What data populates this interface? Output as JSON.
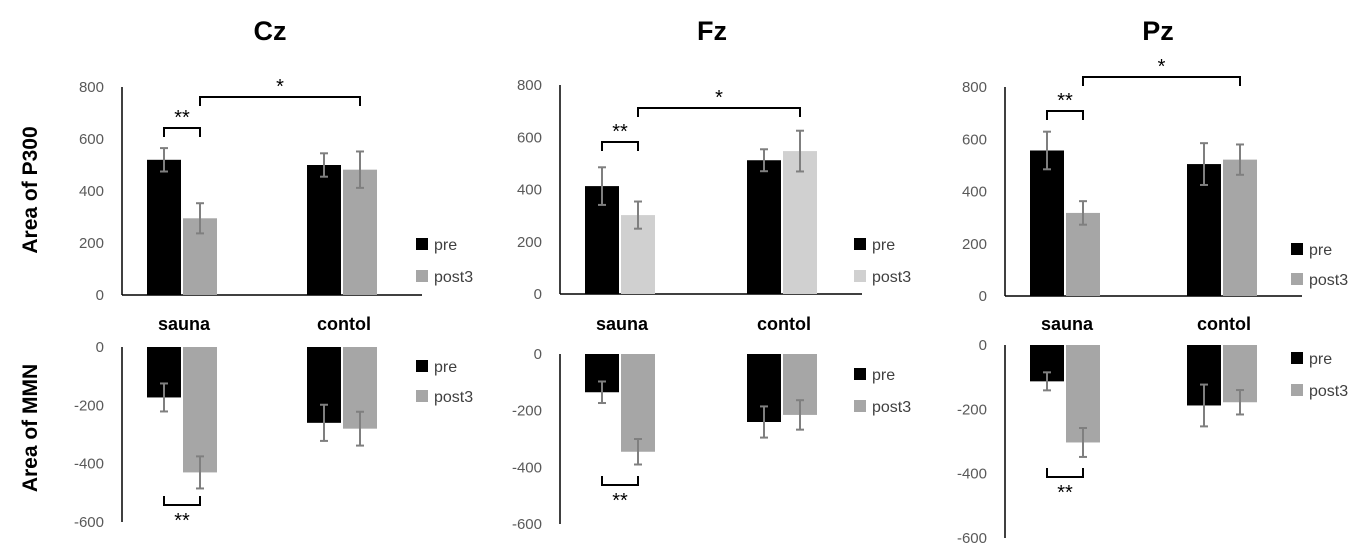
{
  "figure": {
    "y_label_top": "Area of P300",
    "y_label_bottom": "Area of MMN"
  },
  "chart_data": [
    {
      "type": "bar",
      "panel": "Cz-P300",
      "title": "Cz",
      "categories": [
        "sauna",
        "contol"
      ],
      "ylim": [
        0,
        800
      ],
      "yticks": [
        0,
        200,
        400,
        600,
        800
      ],
      "series": [
        {
          "name": "pre",
          "color": "#000000",
          "values": [
            520,
            500
          ],
          "errors": [
            45,
            45
          ]
        },
        {
          "name": "post3",
          "color": "#a6a6a6",
          "values": [
            295,
            482
          ],
          "errors": [
            58,
            70
          ]
        }
      ],
      "significance": [
        {
          "label": "**",
          "from": "sauna:pre",
          "to": "sauna:post3"
        },
        {
          "label": "*",
          "from": "sauna:post3",
          "to": "contol:post3"
        }
      ]
    },
    {
      "type": "bar",
      "panel": "Fz-P300",
      "title": "Fz",
      "categories": [
        "sauna",
        "contol"
      ],
      "ylim": [
        0,
        800
      ],
      "yticks": [
        0,
        200,
        400,
        600,
        800
      ],
      "series": [
        {
          "name": "pre",
          "color": "#000000",
          "values": [
            413,
            512
          ],
          "errors": [
            72,
            42
          ]
        },
        {
          "name": "post3",
          "color": "#d0d0d0",
          "values": [
            302,
            547
          ],
          "errors": [
            52,
            78
          ]
        }
      ],
      "significance": [
        {
          "label": "**",
          "from": "sauna:pre",
          "to": "sauna:post3"
        },
        {
          "label": "*",
          "from": "sauna:post3",
          "to": "contol:post3"
        }
      ]
    },
    {
      "type": "bar",
      "panel": "Pz-P300",
      "title": "Pz",
      "categories": [
        "sauna",
        "contol"
      ],
      "ylim": [
        0,
        800
      ],
      "yticks": [
        0,
        200,
        400,
        600,
        800
      ],
      "series": [
        {
          "name": "pre",
          "color": "#000000",
          "values": [
            557,
            505
          ],
          "errors": [
            72,
            80
          ]
        },
        {
          "name": "post3",
          "color": "#a6a6a6",
          "values": [
            318,
            522
          ],
          "errors": [
            45,
            58
          ]
        }
      ],
      "significance": [
        {
          "label": "**",
          "from": "sauna:pre",
          "to": "sauna:post3"
        },
        {
          "label": "*",
          "from": "sauna:post3",
          "to": "contol:post3"
        }
      ]
    },
    {
      "type": "bar",
      "panel": "Cz-MMN",
      "categories": [
        "sauna",
        "contol"
      ],
      "ylim": [
        -600,
        0
      ],
      "yticks": [
        0,
        -200,
        -400,
        -600
      ],
      "series": [
        {
          "name": "pre",
          "color": "#000000",
          "values": [
            -173,
            -260
          ],
          "errors": [
            48,
            62
          ]
        },
        {
          "name": "post3",
          "color": "#a6a6a6",
          "values": [
            -430,
            -280
          ],
          "errors": [
            55,
            58
          ]
        }
      ],
      "significance": [
        {
          "label": "**",
          "from": "sauna:pre",
          "to": "sauna:post3"
        }
      ]
    },
    {
      "type": "bar",
      "panel": "Fz-MMN",
      "categories": [
        "sauna",
        "contol"
      ],
      "ylim": [
        -600,
        0
      ],
      "yticks": [
        0,
        -200,
        -400,
        -600
      ],
      "series": [
        {
          "name": "pre",
          "color": "#000000",
          "values": [
            -135,
            -240
          ],
          "errors": [
            38,
            55
          ]
        },
        {
          "name": "post3",
          "color": "#a6a6a6",
          "values": [
            -345,
            -215
          ],
          "errors": [
            45,
            52
          ]
        }
      ],
      "significance": [
        {
          "label": "**",
          "from": "sauna:pre",
          "to": "sauna:post3"
        }
      ]
    },
    {
      "type": "bar",
      "panel": "Pz-MMN",
      "categories": [
        "sauna",
        "contol"
      ],
      "ylim": [
        -600,
        0
      ],
      "yticks": [
        0,
        -200,
        -400,
        -600
      ],
      "series": [
        {
          "name": "pre",
          "color": "#000000",
          "values": [
            -113,
            -188
          ],
          "errors": [
            28,
            65
          ]
        },
        {
          "name": "post3",
          "color": "#a6a6a6",
          "values": [
            -303,
            -178
          ],
          "errors": [
            45,
            38
          ]
        }
      ],
      "significance": [
        {
          "label": "**",
          "from": "sauna:pre",
          "to": "sauna:post3"
        }
      ]
    }
  ]
}
